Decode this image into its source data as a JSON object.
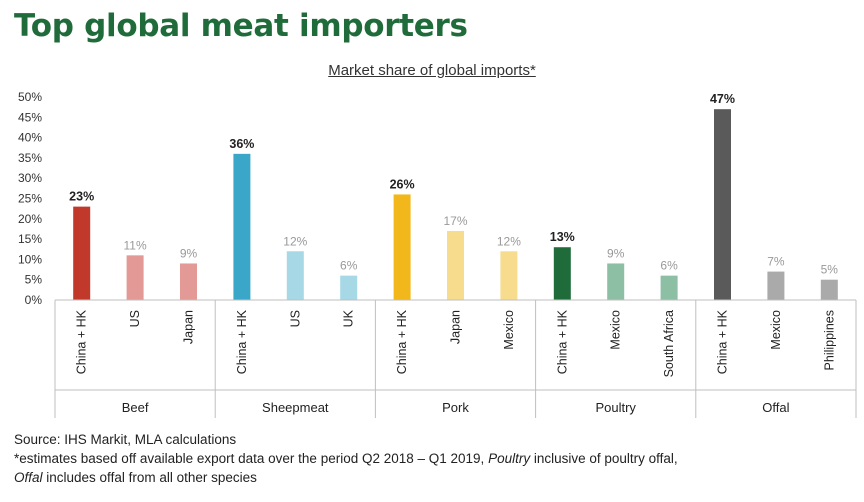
{
  "title": "Top global meat importers",
  "chart_data": {
    "type": "bar",
    "title": "Market share of global imports*",
    "ylim": [
      0,
      50
    ],
    "yticks": [
      "0%",
      "5%",
      "10%",
      "15%",
      "20%",
      "25%",
      "30%",
      "35%",
      "40%",
      "45%",
      "50%"
    ],
    "grid": false,
    "legend": "none",
    "groups": [
      {
        "name": "Beef",
        "bars": [
          {
            "category": "China + HK",
            "value": 23,
            "label": "23%",
            "color": "#c0392b",
            "highlight": true
          },
          {
            "category": "US",
            "value": 11,
            "label": "11%",
            "color": "#e39a97",
            "highlight": false
          },
          {
            "category": "Japan",
            "value": 9,
            "label": "9%",
            "color": "#e39a97",
            "highlight": false
          }
        ]
      },
      {
        "name": "Sheepmeat",
        "bars": [
          {
            "category": "China + HK",
            "value": 36,
            "label": "36%",
            "color": "#3aa6c8",
            "highlight": true
          },
          {
            "category": "US",
            "value": 12,
            "label": "12%",
            "color": "#a6d8e6",
            "highlight": false
          },
          {
            "category": "UK",
            "value": 6,
            "label": "6%",
            "color": "#a6d8e6",
            "highlight": false
          }
        ]
      },
      {
        "name": "Pork",
        "bars": [
          {
            "category": "China + HK",
            "value": 26,
            "label": "26%",
            "color": "#f2b81b",
            "highlight": true
          },
          {
            "category": "Japan",
            "value": 17,
            "label": "17%",
            "color": "#f8dc8e",
            "highlight": false
          },
          {
            "category": "Mexico",
            "value": 12,
            "label": "12%",
            "color": "#f8dc8e",
            "highlight": false
          }
        ]
      },
      {
        "name": "Poultry",
        "bars": [
          {
            "category": "China + HK",
            "value": 13,
            "label": "13%",
            "color": "#1f6b3a",
            "highlight": true
          },
          {
            "category": "Mexico",
            "value": 9,
            "label": "9%",
            "color": "#8cbfa4",
            "highlight": false
          },
          {
            "category": "South Africa",
            "value": 6,
            "label": "6%",
            "color": "#8cbfa4",
            "highlight": false
          }
        ]
      },
      {
        "name": "Offal",
        "bars": [
          {
            "category": "China + HK",
            "value": 47,
            "label": "47%",
            "color": "#5a5a5a",
            "highlight": true
          },
          {
            "category": "Mexico",
            "value": 7,
            "label": "7%",
            "color": "#aaaaaa",
            "highlight": false
          },
          {
            "category": "Philippines",
            "value": 5,
            "label": "5%",
            "color": "#aaaaaa",
            "highlight": false
          }
        ]
      }
    ]
  },
  "footnotes": {
    "source": "Source: IHS Markit, MLA calculations",
    "line2_a": "*estimates based off available export data over the period Q2 2018 – Q1 2019, ",
    "line2_b": "Poultry",
    "line2_c": " inclusive of poultry offal,",
    "line3_a": "Offal",
    "line3_b": " includes offal from all other species"
  }
}
